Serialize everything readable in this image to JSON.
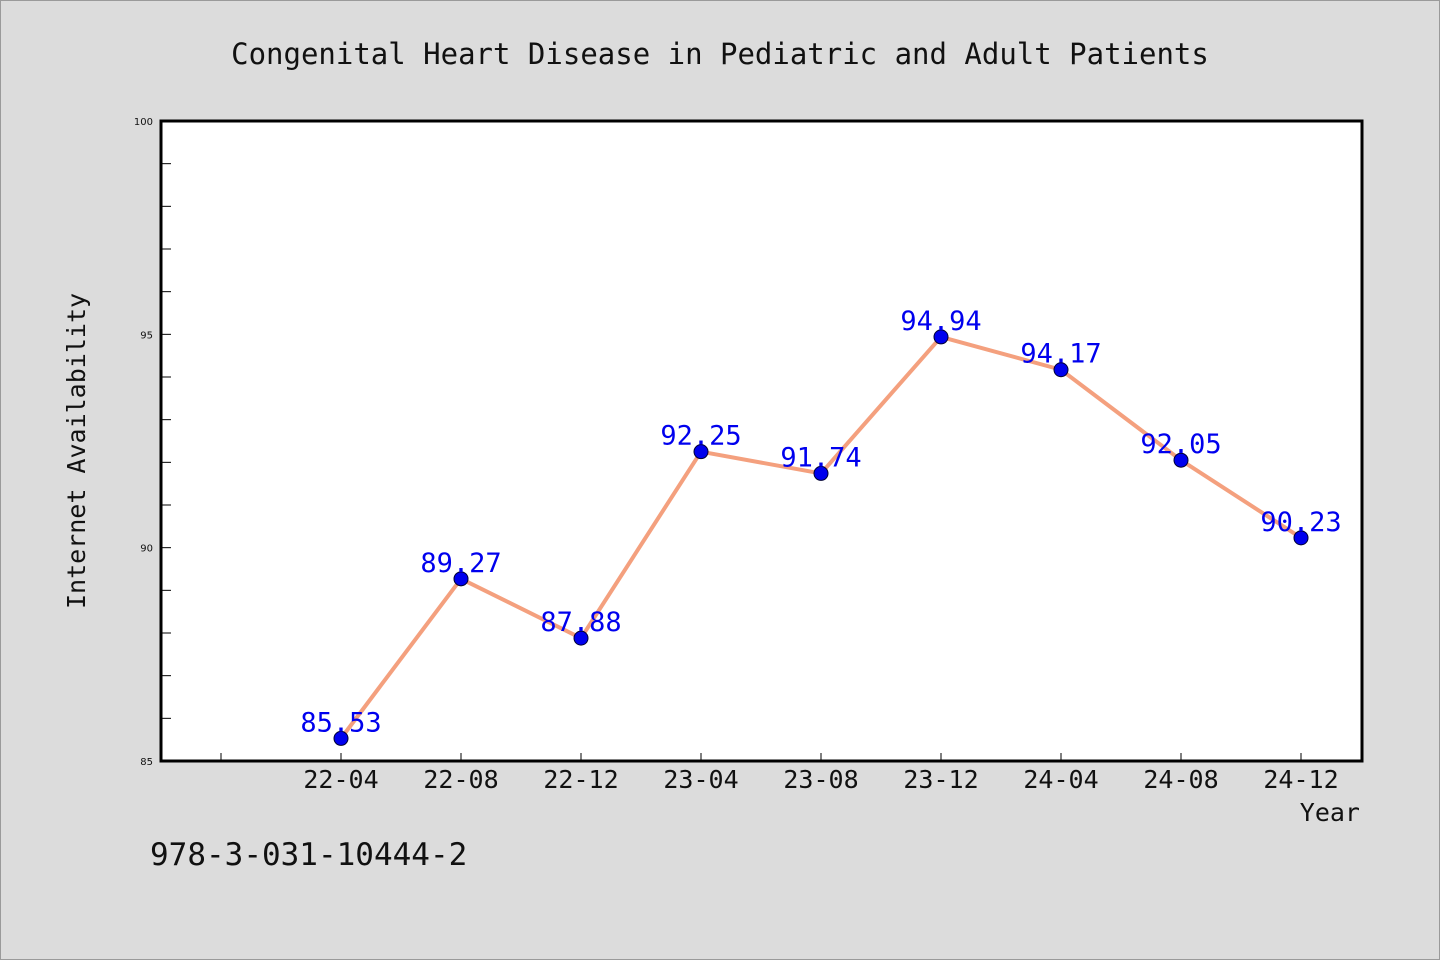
{
  "chart_data": {
    "type": "line",
    "title": "Congenital Heart Disease in Pediatric and Adult Patients",
    "xlabel": "Year",
    "ylabel": "Internet Availability",
    "ylim": [
      85,
      100
    ],
    "y_ticks": [
      85,
      90,
      95,
      100
    ],
    "categories": [
      "22-04",
      "22-08",
      "22-12",
      "23-04",
      "23-08",
      "23-12",
      "24-04",
      "24-08",
      "24-12"
    ],
    "series": [
      {
        "values": [
          85.53,
          89.27,
          87.88,
          92.25,
          91.74,
          94.94,
          94.17,
          92.05,
          90.23
        ],
        "labels": [
          "85.53",
          "89.27",
          "87.88",
          "92.25",
          "91.74",
          "94.94",
          "94.17",
          "92.05",
          "90.23"
        ],
        "line_color": "#f4a07e",
        "marker_color": "#0000ee"
      }
    ],
    "grid": false,
    "legend": "none"
  },
  "footer": {
    "text": "978-3-031-10444-2"
  },
  "colors": {
    "background": "#dcdcdc",
    "plot_background": "#ffffff",
    "data_label": "#0000ee"
  }
}
